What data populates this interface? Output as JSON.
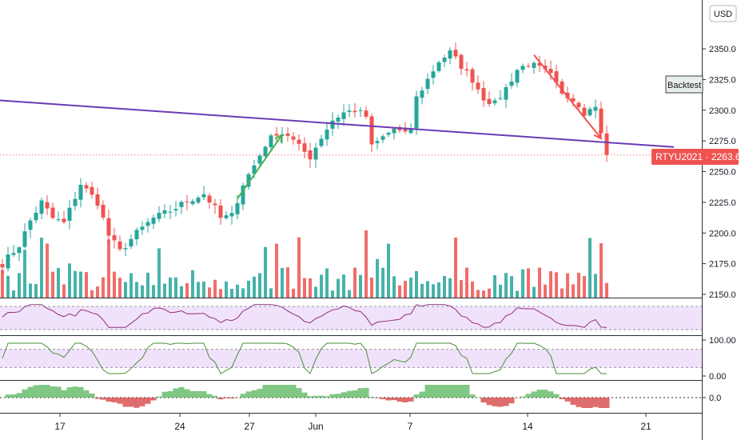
{
  "currency_label": "USD",
  "backtest_label": "Backtest",
  "price_tag": {
    "symbol": "RTYU2021",
    "sep": " · ",
    "value": "2263.6"
  },
  "colors": {
    "up": "#26a69a",
    "down": "#ef5350",
    "trendline": "#6a3bb5",
    "green_arrow": "#4caf50",
    "red_arrow": "#ef5350",
    "rsi": "#8e2f7a",
    "stoch": "#4a8f3a",
    "band_fill": "#f1e2fb"
  },
  "chart_data": [
    {
      "type": "candlestick",
      "panel": "price",
      "ylim": [
        2150,
        2375
      ],
      "yticks": [
        "2150.0",
        "2175.0",
        "2200.0",
        "2225.0",
        "2250.0",
        "2275.0",
        "2300.0",
        "2325.0",
        "2350.0"
      ],
      "xticks": [
        "17",
        "24",
        "27",
        "Jun",
        "7",
        "14",
        "21"
      ],
      "last_price": 2263.6,
      "anchors": [
        {
          "i": 0,
          "p": 2175
        },
        {
          "i": 3,
          "p": 2190
        },
        {
          "i": 5,
          "p": 2210
        },
        {
          "i": 7,
          "p": 2225
        },
        {
          "i": 9,
          "p": 2212
        },
        {
          "i": 11,
          "p": 2208
        },
        {
          "i": 14,
          "p": 2240
        },
        {
          "i": 17,
          "p": 2225
        },
        {
          "i": 19,
          "p": 2198
        },
        {
          "i": 21,
          "p": 2185
        },
        {
          "i": 24,
          "p": 2200
        },
        {
          "i": 27,
          "p": 2212
        },
        {
          "i": 30,
          "p": 2218
        },
        {
          "i": 33,
          "p": 2226
        },
        {
          "i": 36,
          "p": 2232
        },
        {
          "i": 38,
          "p": 2220
        },
        {
          "i": 39,
          "p": 2212
        },
        {
          "i": 41,
          "p": 2214
        },
        {
          "i": 43,
          "p": 2240
        },
        {
          "i": 45,
          "p": 2255
        },
        {
          "i": 47,
          "p": 2272
        },
        {
          "i": 49,
          "p": 2282
        },
        {
          "i": 51,
          "p": 2280
        },
        {
          "i": 53,
          "p": 2270
        },
        {
          "i": 55,
          "p": 2262
        },
        {
          "i": 57,
          "p": 2278
        },
        {
          "i": 59,
          "p": 2292
        },
        {
          "i": 61,
          "p": 2298
        },
        {
          "i": 63,
          "p": 2300
        },
        {
          "i": 65,
          "p": 2295
        },
        {
          "i": 66,
          "p": 2270
        },
        {
          "i": 68,
          "p": 2278
        },
        {
          "i": 70,
          "p": 2285
        },
        {
          "i": 72,
          "p": 2280
        },
        {
          "i": 73,
          "p": 2285
        },
        {
          "i": 74,
          "p": 2310
        },
        {
          "i": 76,
          "p": 2325
        },
        {
          "i": 78,
          "p": 2340
        },
        {
          "i": 80,
          "p": 2347
        },
        {
          "i": 82,
          "p": 2336
        },
        {
          "i": 84,
          "p": 2325
        },
        {
          "i": 86,
          "p": 2310
        },
        {
          "i": 88,
          "p": 2305
        },
        {
          "i": 90,
          "p": 2318
        },
        {
          "i": 92,
          "p": 2333
        },
        {
          "i": 94,
          "p": 2338
        },
        {
          "i": 96,
          "p": 2334
        },
        {
          "i": 98,
          "p": 2328
        },
        {
          "i": 100,
          "p": 2312
        },
        {
          "i": 102,
          "p": 2310
        },
        {
          "i": 104,
          "p": 2298
        },
        {
          "i": 105,
          "p": 2304
        },
        {
          "i": 106,
          "p": 2302
        },
        {
          "i": 107,
          "p": 2283
        },
        {
          "i": 108,
          "p": 2263.6
        }
      ],
      "trendline": [
        [
          -10,
          2311
        ],
        [
          120,
          2270
        ]
      ],
      "arrow_up": [
        [
          42,
          2228
        ],
        [
          50,
          2280
        ]
      ],
      "arrow_down": [
        [
          95,
          2345
        ],
        [
          107,
          2277
        ]
      ]
    },
    {
      "type": "bar",
      "panel": "volume",
      "note": "volume bars colored by candle direction"
    },
    {
      "type": "line",
      "panel": "rsi",
      "ylim": [
        0,
        100
      ],
      "band": [
        30,
        70
      ]
    },
    {
      "type": "line",
      "panel": "stochastic",
      "yticks": [
        "100.00",
        "0.00"
      ],
      "ylim": [
        -10,
        120
      ],
      "band": [
        20,
        80
      ]
    },
    {
      "type": "bar",
      "panel": "histogram",
      "yticks": [
        "0.0"
      ]
    }
  ]
}
